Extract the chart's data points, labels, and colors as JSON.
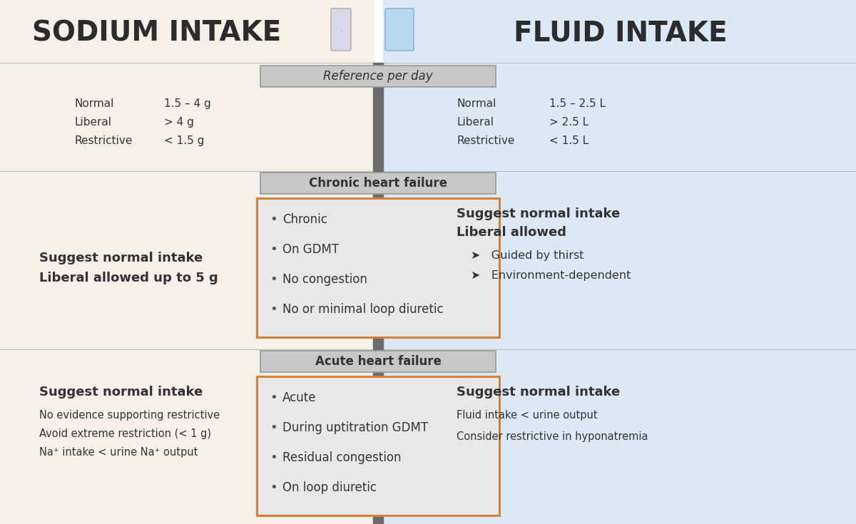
{
  "bg_left": "#f5f0e8",
  "bg_right": "#dce8f5",
  "bg_center": "#e8e8e8",
  "header_bg": "#bbbbbb",
  "orange_border": "#d4813a",
  "center_bar_color": "#6b6b6b",
  "label_box_color": "#c8c8c8",
  "label_box_edge": "#999999",
  "title_left": "SODIUM INTAKE",
  "title_right": "FLUID INTAKE",
  "title_color": "#2c2c2c",
  "ref_box_label": "Reference per day",
  "sodium_ref": [
    [
      "Normal",
      "1.5 – 4 g"
    ],
    [
      "Liberal",
      "> 4 g"
    ],
    [
      "Restrictive",
      "< 1.5 g"
    ]
  ],
  "fluid_ref": [
    [
      "Normal",
      "1.5 – 2.5 L"
    ],
    [
      "Liberal",
      "> 2.5 L"
    ],
    [
      "Restrictive",
      "< 1.5 L"
    ]
  ],
  "chronic_label": "Chronic heart failure",
  "chronic_center_items": [
    "Chronic",
    "On GDMT",
    "No congestion",
    "No or minimal loop diuretic"
  ],
  "chronic_sodium_line1": "Suggest normal intake",
  "chronic_sodium_line2": "Liberal allowed up to 5 g",
  "chronic_fluid_line1": "Suggest normal intake",
  "chronic_fluid_line2": "Liberal allowed",
  "chronic_fluid_sub": [
    "➤   Guided by thirst",
    "➤   Environment-dependent"
  ],
  "acute_label": "Acute heart failure",
  "acute_center_items": [
    "Acute",
    "During uptitration GDMT",
    "Residual congestion",
    "On loop diuretic"
  ],
  "acute_sodium_line1": "Suggest normal intake",
  "acute_sodium_sub": [
    "No evidence supporting restrictive",
    "Avoid extreme restriction (< 1 g)",
    "Na⁺ intake < urine Na⁺ output"
  ],
  "acute_fluid_line1": "Suggest normal intake",
  "acute_fluid_sub": [
    "Fluid intake < urine output",
    "Consider restrictive in hyponatremia"
  ],
  "text_dark": "#333333",
  "text_mid": "#555555",
  "text_light": "#666666"
}
